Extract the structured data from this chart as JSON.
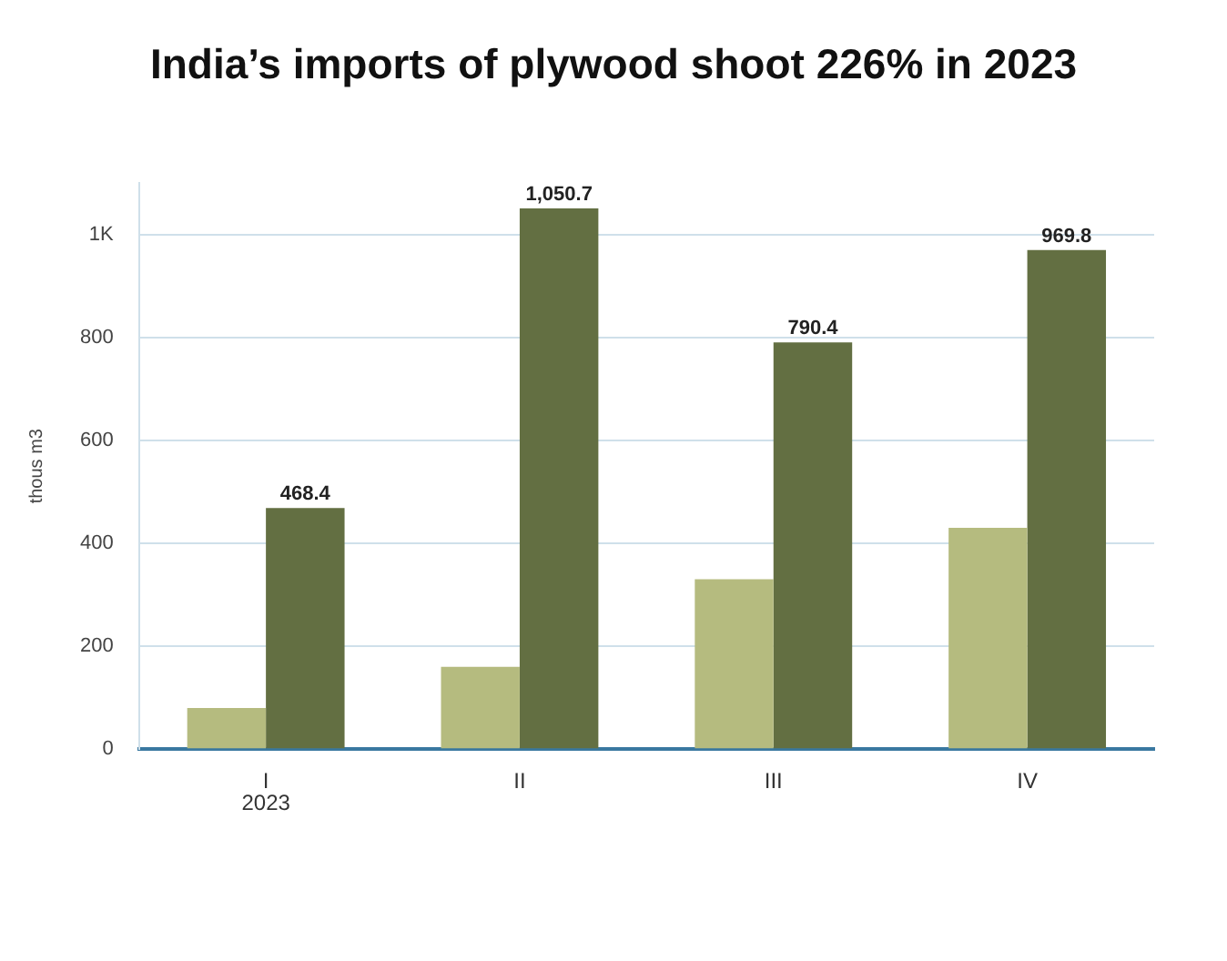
{
  "chart_data": {
    "type": "bar",
    "title": "India’s imports of plywood shoot 226% in 2023",
    "ylabel": "thous m3",
    "categories": [
      "I",
      "II",
      "III",
      "IV"
    ],
    "series": [
      {
        "color": "#b5bb7f",
        "values": [
          80,
          160,
          330,
          430
        ]
      },
      {
        "color": "#636f42",
        "values": [
          468.4,
          1050.7,
          790.4,
          969.8
        ],
        "value_labels": [
          "468.4",
          "1,050.7",
          "790.4",
          "969.8"
        ]
      }
    ],
    "ylim": [
      0,
      1100
    ],
    "yticks": [
      0,
      200,
      400,
      600,
      800,
      {
        "value": 1000,
        "label": "1K"
      }
    ],
    "grid": "y",
    "legend": false,
    "annotations": [
      "2023"
    ]
  }
}
